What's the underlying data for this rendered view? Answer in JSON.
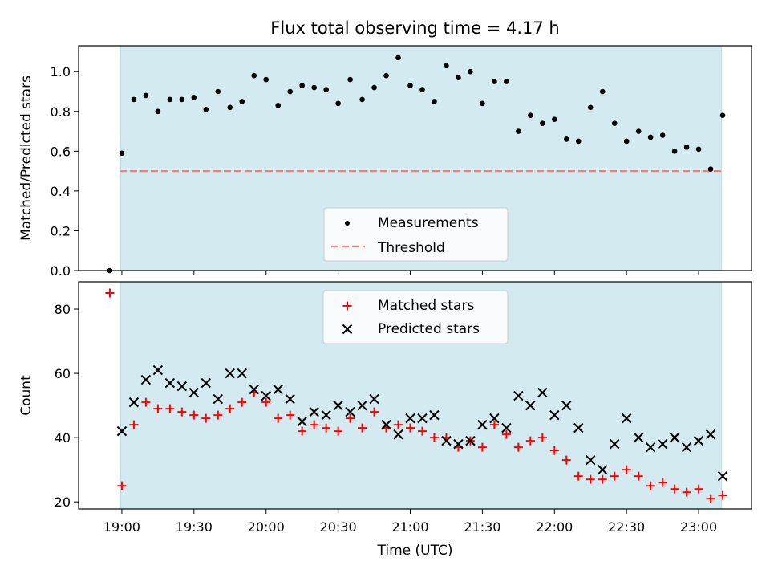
{
  "chart_data": [
    {
      "type": "scatter",
      "title": "Flux total observing time = 4.17 h",
      "xlabel": "",
      "ylabel": "Matched/Predicted stars",
      "ylim": [
        0,
        1.13
      ],
      "yticks": [
        "0.0",
        "0.2",
        "0.4",
        "0.6",
        "0.8",
        "1.0"
      ],
      "ytick_values": [
        0,
        0.2,
        0.4,
        0.6,
        0.8,
        1.0
      ],
      "observing_window_minutes": [
        -0.5,
        249.5
      ],
      "threshold": 0.5,
      "threshold_color": "#f08080",
      "window_color": "#d4eaf1",
      "legend": {
        "position": "lower-center",
        "entries": [
          "Measurements",
          "Threshold"
        ]
      },
      "series": [
        {
          "name": "Measurements",
          "minutes": [
            -5,
            0,
            5,
            10,
            15,
            20,
            25,
            30,
            35,
            40,
            45,
            50,
            55,
            60,
            65,
            70,
            75,
            80,
            85,
            90,
            95,
            100,
            105,
            110,
            115,
            120,
            125,
            130,
            135,
            140,
            145,
            150,
            155,
            160,
            165,
            170,
            175,
            180,
            185,
            190,
            195,
            200,
            205,
            210,
            215,
            220,
            225,
            230,
            235,
            240,
            245,
            250
          ],
          "values": [
            0.0,
            0.59,
            0.86,
            0.88,
            0.8,
            0.86,
            0.86,
            0.87,
            0.81,
            0.9,
            0.82,
            0.85,
            0.98,
            0.96,
            0.83,
            0.9,
            0.93,
            0.92,
            0.91,
            0.84,
            0.96,
            0.86,
            0.92,
            0.98,
            1.07,
            0.93,
            0.91,
            0.85,
            1.03,
            0.97,
            1.0,
            0.84,
            0.95,
            0.95,
            0.7,
            0.78,
            0.74,
            0.76,
            0.66,
            0.65,
            0.82,
            0.9,
            0.74,
            0.65,
            0.7,
            0.67,
            0.68,
            0.6,
            0.62,
            0.61,
            0.51,
            0.78
          ]
        }
      ]
    },
    {
      "type": "scatter",
      "title": "",
      "xlabel": "Time (UTC)",
      "ylabel": "Count",
      "ylim": [
        17.8,
        88.5
      ],
      "yticks": [
        "20",
        "40",
        "60",
        "80"
      ],
      "ytick_values": [
        20,
        40,
        60,
        80
      ],
      "xticks": [
        "19:00",
        "19:30",
        "20:00",
        "20:30",
        "21:00",
        "21:30",
        "22:00",
        "22:30",
        "23:00"
      ],
      "xtick_minutes": [
        0,
        30,
        60,
        90,
        120,
        150,
        180,
        210,
        240
      ],
      "xlim_minutes": [
        -18,
        262
      ],
      "legend": {
        "position": "top-center",
        "entries": [
          "Matched stars",
          "Predicted stars"
        ]
      },
      "series": [
        {
          "name": "Matched stars",
          "color": "#ff0000",
          "minutes": [
            -5,
            0,
            5,
            10,
            15,
            20,
            25,
            30,
            35,
            40,
            45,
            50,
            55,
            60,
            65,
            70,
            75,
            80,
            85,
            90,
            95,
            100,
            105,
            110,
            115,
            120,
            125,
            130,
            135,
            140,
            145,
            150,
            155,
            160,
            165,
            170,
            175,
            180,
            185,
            190,
            195,
            200,
            205,
            210,
            215,
            220,
            225,
            230,
            235,
            240,
            245,
            250
          ],
          "values": [
            85,
            25,
            44,
            51,
            49,
            49,
            48,
            47,
            46,
            47,
            49,
            51,
            54,
            51,
            46,
            47,
            42,
            44,
            43,
            42,
            46,
            43,
            48,
            43,
            44,
            43,
            42,
            40,
            40,
            37,
            39,
            37,
            44,
            41,
            37,
            39,
            40,
            36,
            33,
            28,
            27,
            27,
            28,
            30,
            28,
            25,
            26,
            24,
            23,
            24,
            21,
            22
          ]
        },
        {
          "name": "Predicted stars",
          "color": "#000000",
          "minutes": [
            0,
            5,
            10,
            15,
            20,
            25,
            30,
            35,
            40,
            45,
            50,
            55,
            60,
            65,
            70,
            75,
            80,
            85,
            90,
            95,
            100,
            105,
            110,
            115,
            120,
            125,
            130,
            135,
            140,
            145,
            150,
            155,
            160,
            165,
            170,
            175,
            180,
            185,
            190,
            195,
            200,
            205,
            210,
            215,
            220,
            225,
            230,
            235,
            240,
            245,
            250
          ],
          "values": [
            42,
            51,
            58,
            61,
            57,
            56,
            54,
            57,
            52,
            60,
            60,
            55,
            53,
            55,
            52,
            45,
            48,
            47,
            50,
            48,
            50,
            52,
            44,
            41,
            46,
            46,
            47,
            39,
            38,
            39,
            44,
            46,
            43,
            53,
            50,
            54,
            47,
            50,
            43,
            33,
            30,
            38,
            46,
            40,
            37,
            38,
            40,
            37,
            39,
            41,
            28
          ]
        }
      ]
    }
  ]
}
